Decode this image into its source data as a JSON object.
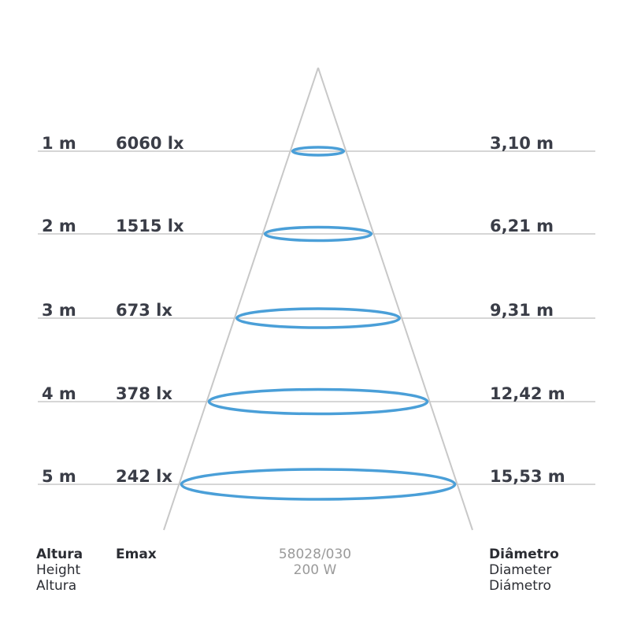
{
  "rows": [
    {
      "height": "1 m",
      "emax": "6060 lx",
      "diameter": "3,10 m"
    },
    {
      "height": "2 m",
      "emax": "1515 lx",
      "diameter": "6,21 m"
    },
    {
      "height": "3 m",
      "emax": "673 lx",
      "diameter": "9,31 m"
    },
    {
      "height": "4 m",
      "emax": "378 lx",
      "diameter": "12,42 m"
    },
    {
      "height": "5 m",
      "emax": "242 lx",
      "diameter": "15,53 m"
    }
  ],
  "footer": {
    "height_labels": [
      "Altura",
      "Height",
      "Altura"
    ],
    "emax_label": "Emax",
    "product_code": "58028/030",
    "power": "200 W",
    "diameter_labels": [
      "Diâmetro",
      "Diameter",
      "Diámetro"
    ]
  },
  "colors": {
    "ring": "#4a9fd8",
    "cone": "#c8c8c8",
    "gridline": "#c8c8c8",
    "label": "#3a3d47"
  }
}
